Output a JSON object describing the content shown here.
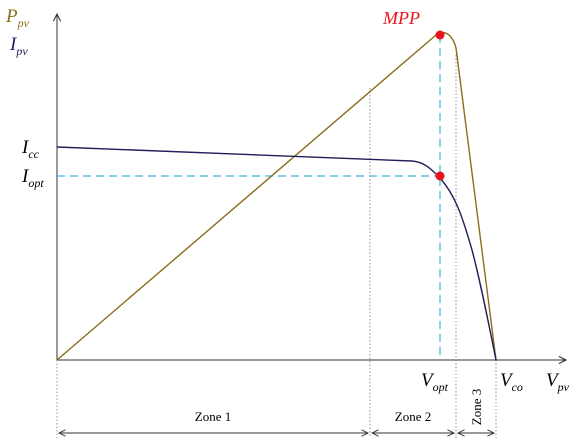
{
  "axes": {
    "y_power": {
      "symbol": "P",
      "subscript": "pv",
      "color": "#8a6d1c"
    },
    "y_current": {
      "symbol": "I",
      "subscript": "pv",
      "color": "#1f1f5c"
    },
    "x_voltage": {
      "symbol": "V",
      "subscript": "pv"
    }
  },
  "points": {
    "mpp": {
      "label": "MPP",
      "color": "#e8141b"
    },
    "icc": {
      "symbol": "I",
      "subscript": "cc"
    },
    "iopt": {
      "symbol": "I",
      "subscript": "opt"
    },
    "vopt": {
      "symbol": "V",
      "subscript": "opt"
    },
    "vco": {
      "symbol": "V",
      "subscript": "co"
    }
  },
  "zones": [
    {
      "label": "Zone 1"
    },
    {
      "label": "Zone 2"
    },
    {
      "label": "Zone 3"
    }
  ],
  "colors": {
    "power_curve": "#8a6d1c",
    "current_curve": "#1f1f5c",
    "guide_dashed": "#5bc0de",
    "marker": "#e8141b",
    "axes": "#333333"
  }
}
